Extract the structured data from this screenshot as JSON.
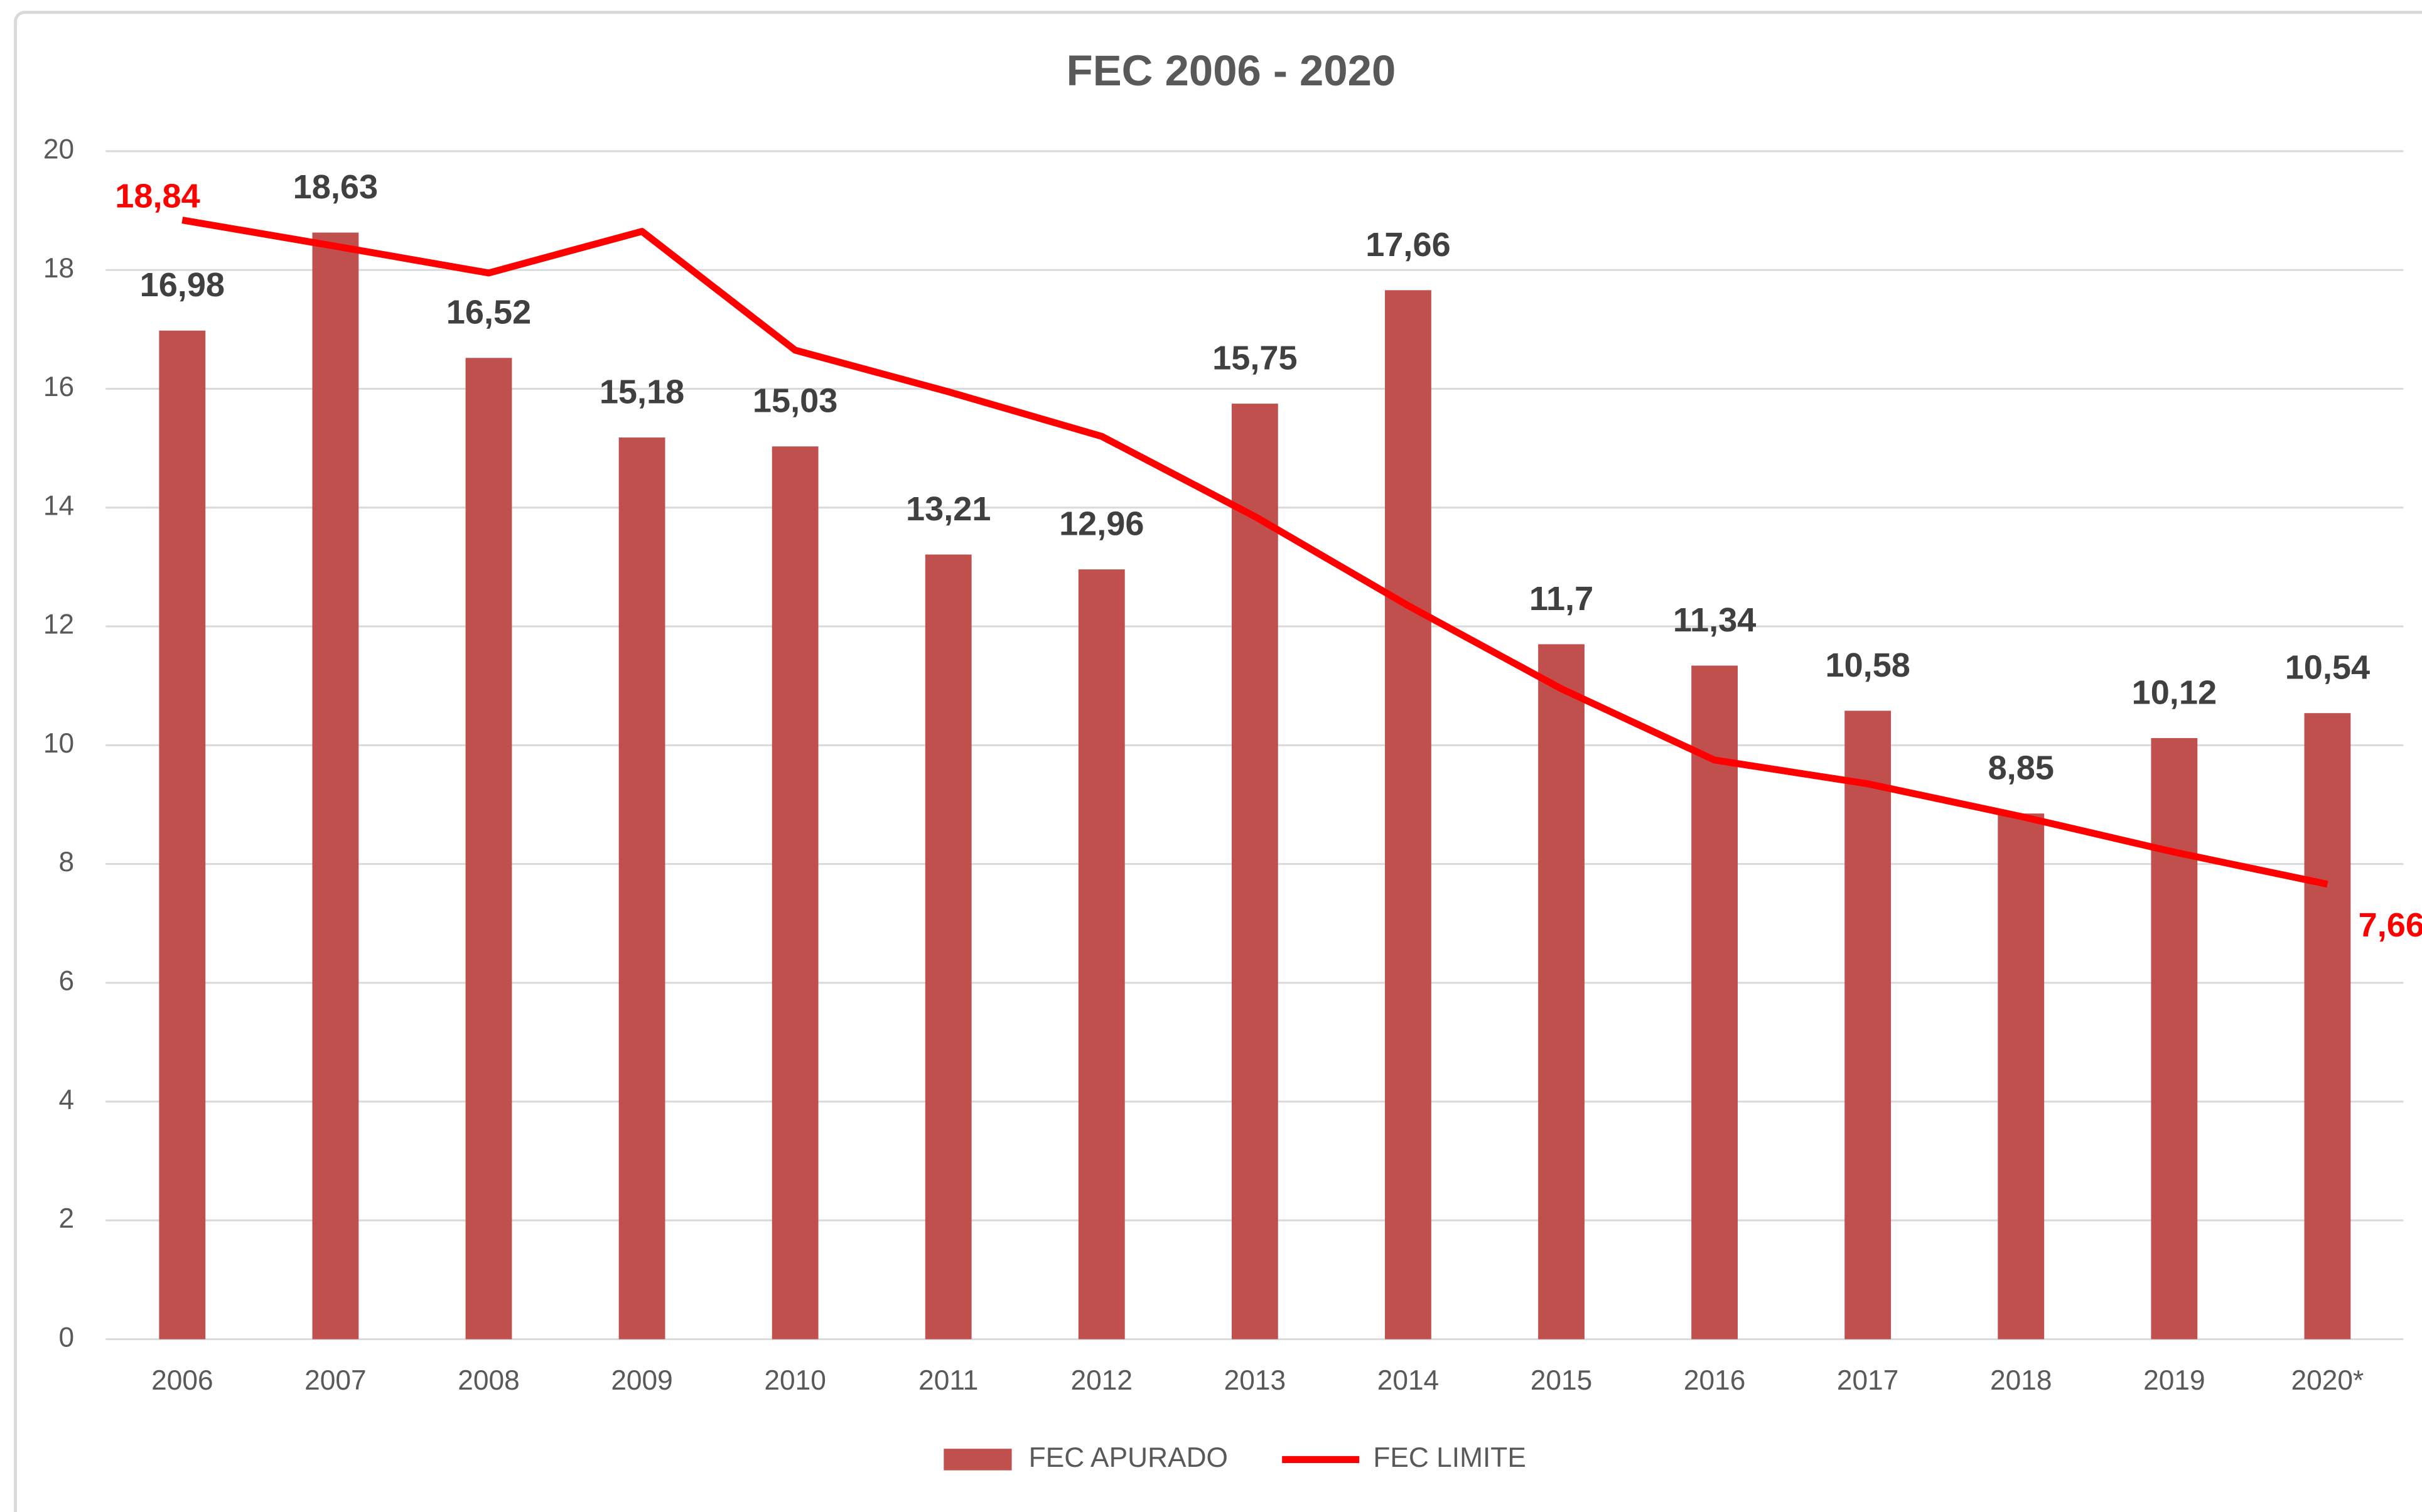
{
  "chart_data": {
    "type": "bar-line",
    "title": "FEC 2006 - 2020",
    "categories": [
      "2006",
      "2007",
      "2008",
      "2009",
      "2010",
      "2011",
      "2012",
      "2013",
      "2014",
      "2015",
      "2016",
      "2017",
      "2018",
      "2019",
      "2020*"
    ],
    "series": [
      {
        "name": "FEC APURADO",
        "type": "bar",
        "color": "#c0504d",
        "values": [
          16.98,
          18.63,
          16.52,
          15.18,
          15.03,
          13.21,
          12.96,
          15.75,
          17.66,
          11.7,
          11.34,
          10.58,
          8.85,
          10.12,
          10.54
        ],
        "value_labels": [
          "16,98",
          "18,63",
          "16,52",
          "15,18",
          "15,03",
          "13,21",
          "12,96",
          "15,75",
          "17,66",
          "11,7",
          "11,34",
          "10,58",
          "8,85",
          "10,12",
          "10,54"
        ]
      },
      {
        "name": "FEC LIMITE",
        "type": "line",
        "color": "#ff0000",
        "values": [
          18.84,
          18.4,
          17.95,
          18.65,
          16.65,
          15.95,
          15.2,
          13.85,
          12.35,
          10.95,
          9.75,
          9.35,
          8.8,
          8.2,
          7.66
        ],
        "value_labels": [
          "18,84",
          null,
          null,
          null,
          null,
          null,
          null,
          null,
          null,
          null,
          null,
          null,
          null,
          null,
          "7,66"
        ]
      }
    ],
    "ylim": [
      0,
      20
    ],
    "yticks": [
      0,
      2,
      4,
      6,
      8,
      10,
      12,
      14,
      16,
      18,
      20
    ],
    "grid": true,
    "legend": "bottom"
  }
}
